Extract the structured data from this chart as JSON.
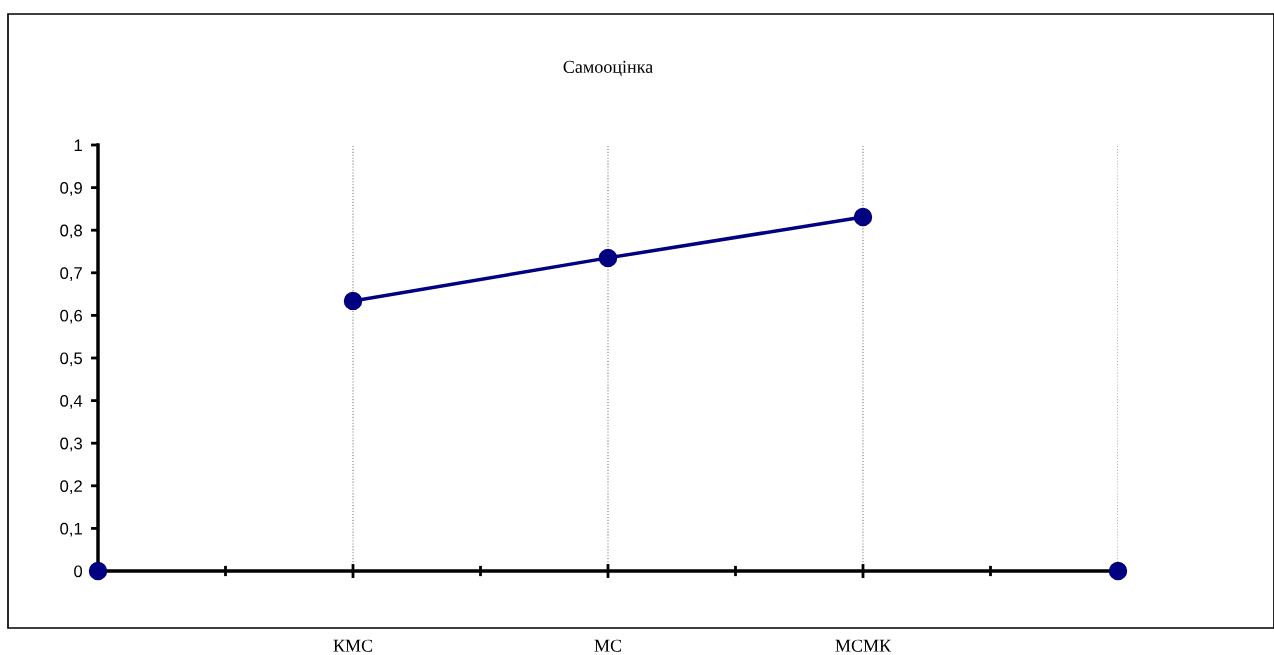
{
  "chart_data": {
    "type": "line",
    "title": "Самооцінка",
    "categories": [
      null,
      "КМС",
      "МС",
      "МСМК",
      null
    ],
    "series": [
      {
        "color": "#000080",
        "values": [
          null,
          0.634,
          0.735,
          0.831,
          null
        ]
      },
      {
        "type": "scatter",
        "color": "#000080",
        "values": [
          0,
          null,
          null,
          null,
          0
        ]
      }
    ],
    "ylim": [
      0,
      1
    ],
    "yticks": [
      {
        "value": 0,
        "label": "0"
      },
      {
        "value": 0.1,
        "label": "0,1"
      },
      {
        "value": 0.2,
        "label": "0,2"
      },
      {
        "value": 0.3,
        "label": "0,3"
      },
      {
        "value": 0.4,
        "label": "0,4"
      },
      {
        "value": 0.5,
        "label": "0,5"
      },
      {
        "value": 0.6,
        "label": "0,6"
      },
      {
        "value": 0.7,
        "label": "0,7"
      },
      {
        "value": 0.8,
        "label": "0,8"
      },
      {
        "value": 0.9,
        "label": "0,9"
      },
      {
        "value": 1,
        "label": "1"
      }
    ],
    "grid": "x",
    "marker": "circle",
    "line_style": "solid"
  }
}
